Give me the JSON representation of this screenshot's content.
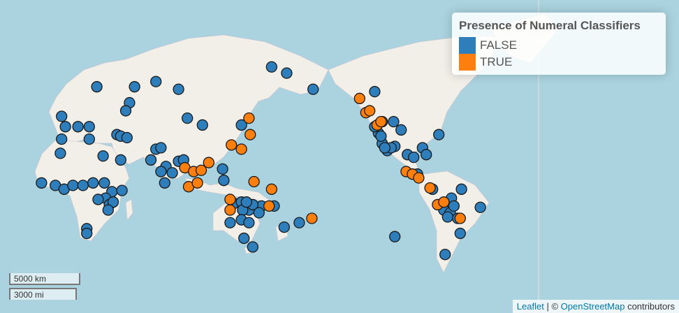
{
  "legend": {
    "title": "Presence of Numeral Classifiers",
    "items": [
      {
        "label": "FALSE",
        "color": "#2e7ebc"
      },
      {
        "label": "TRUE",
        "color": "#ff7f0e"
      }
    ]
  },
  "points": [
    {
      "lon": 166,
      "lat": 67,
      "group": 0
    },
    {
      "lon": 178,
      "lat": 65,
      "group": 0
    },
    {
      "lon": -161,
      "lat": 59,
      "group": 0
    },
    {
      "lon": 27,
      "lat": 60,
      "group": 0
    },
    {
      "lon": 57,
      "lat": 60,
      "group": 0
    },
    {
      "lon": 74,
      "lat": 62,
      "group": 0
    },
    {
      "lon": 92,
      "lat": 59,
      "group": 0
    },
    {
      "lon": 53,
      "lat": 53,
      "group": 0
    },
    {
      "lon": 50,
      "lat": 49,
      "group": 0
    },
    {
      "lon": -1,
      "lat": 46,
      "group": 0
    },
    {
      "lon": 2,
      "lat": 40,
      "group": 0
    },
    {
      "lon": 12,
      "lat": 40,
      "group": 0
    },
    {
      "lon": 21,
      "lat": 40,
      "group": 0
    },
    {
      "lon": -1,
      "lat": 32,
      "group": 0
    },
    {
      "lon": 21,
      "lat": 32,
      "group": 0
    },
    {
      "lon": 43,
      "lat": 35,
      "group": 0
    },
    {
      "lon": 46,
      "lat": 34,
      "group": 0
    },
    {
      "lon": 51,
      "lat": 33,
      "group": 0
    },
    {
      "lon": 99,
      "lat": 45,
      "group": 0
    },
    {
      "lon": 111,
      "lat": 41,
      "group": 0
    },
    {
      "lon": 142,
      "lat": 41,
      "group": 0
    },
    {
      "lon": -2,
      "lat": 22,
      "group": 0
    },
    {
      "lon": 32,
      "lat": 20,
      "group": 0
    },
    {
      "lon": 46,
      "lat": 17,
      "group": 0
    },
    {
      "lon": 70,
      "lat": 17,
      "group": 0
    },
    {
      "lon": 74,
      "lat": 25,
      "group": 0
    },
    {
      "lon": 78,
      "lat": 26,
      "group": 0
    },
    {
      "lon": 92,
      "lat": 16,
      "group": 0
    },
    {
      "lon": 96,
      "lat": 17,
      "group": 0
    },
    {
      "lon": 82,
      "lat": 12,
      "group": 0
    },
    {
      "lon": 78,
      "lat": 8,
      "group": 0
    },
    {
      "lon": 87,
      "lat": 7,
      "group": 0
    },
    {
      "lon": 81,
      "lat": -1,
      "group": 0
    },
    {
      "lon": 127,
      "lat": 10,
      "group": 0
    },
    {
      "lon": 128,
      "lat": 1,
      "group": 0
    },
    {
      "lon": -17,
      "lat": -1,
      "group": 0
    },
    {
      "lon": -6,
      "lat": -3,
      "group": 0
    },
    {
      "lon": 1,
      "lat": -6,
      "group": 0
    },
    {
      "lon": 8,
      "lat": -3,
      "group": 0
    },
    {
      "lon": 16,
      "lat": -3,
      "group": 0
    },
    {
      "lon": 24,
      "lat": -1,
      "group": 0
    },
    {
      "lon": 33,
      "lat": -1,
      "group": 0
    },
    {
      "lon": 39,
      "lat": -8,
      "group": 0
    },
    {
      "lon": 47,
      "lat": -7,
      "group": 0
    },
    {
      "lon": 34,
      "lat": -13,
      "group": 0
    },
    {
      "lon": 37,
      "lat": -18,
      "group": 0
    },
    {
      "lon": 40,
      "lat": -16,
      "group": 0
    },
    {
      "lon": 28,
      "lat": -14,
      "group": 0
    },
    {
      "lon": 36,
      "lat": -22,
      "group": 0
    },
    {
      "lon": 19,
      "lat": -35,
      "group": 0
    },
    {
      "lon": 19,
      "lat": -38,
      "group": 0
    },
    {
      "lon": 136,
      "lat": -17,
      "group": 0
    },
    {
      "lon": 142,
      "lat": -16,
      "group": 0
    },
    {
      "lon": 148,
      "lat": -22,
      "group": 0
    },
    {
      "lon": 158,
      "lat": -19,
      "group": 0
    },
    {
      "lon": 168,
      "lat": -19,
      "group": 0
    },
    {
      "lon": 151,
      "lat": -18,
      "group": 0
    },
    {
      "lon": 156,
      "lat": -24,
      "group": 0
    },
    {
      "lon": 143,
      "lat": -22,
      "group": 0
    },
    {
      "lon": 146,
      "lat": -16,
      "group": 0
    },
    {
      "lon": 133,
      "lat": -31,
      "group": 0
    },
    {
      "lon": 142,
      "lat": -29,
      "group": 0
    },
    {
      "lon": 148,
      "lat": -31,
      "group": 0
    },
    {
      "lon": 144,
      "lat": -41,
      "group": 0
    },
    {
      "lon": 151,
      "lat": -46,
      "group": 0
    },
    {
      "lon": 176,
      "lat": -34,
      "group": 0
    },
    {
      "lon": -172,
      "lat": -31,
      "group": 0
    },
    {
      "lon": -112,
      "lat": 58,
      "group": 0
    },
    {
      "lon": -97,
      "lat": 43,
      "group": 0
    },
    {
      "lon": -91,
      "lat": 38,
      "group": 0
    },
    {
      "lon": -61,
      "lat": 35,
      "group": 0
    },
    {
      "lon": -109,
      "lat": 36,
      "group": 0
    },
    {
      "lon": -106,
      "lat": 29,
      "group": 0
    },
    {
      "lon": -102,
      "lat": 24,
      "group": 0
    },
    {
      "lon": -96,
      "lat": 27,
      "group": 0
    },
    {
      "lon": -107,
      "lat": 34,
      "group": 0
    },
    {
      "lon": -99,
      "lat": 26,
      "group": 0
    },
    {
      "lon": -104,
      "lat": 26,
      "group": 0
    },
    {
      "lon": -86,
      "lat": 21,
      "group": 0
    },
    {
      "lon": -81,
      "lat": 19,
      "group": 0
    },
    {
      "lon": -74,
      "lat": 26,
      "group": 0
    },
    {
      "lon": -71,
      "lat": 21,
      "group": 0
    },
    {
      "lon": -78,
      "lat": 6,
      "group": 0
    },
    {
      "lon": -66,
      "lat": -6,
      "group": 0
    },
    {
      "lon": -43,
      "lat": -6,
      "group": 0
    },
    {
      "lon": -51,
      "lat": -13,
      "group": 0
    },
    {
      "lon": -57,
      "lat": -22,
      "group": 0
    },
    {
      "lon": -52,
      "lat": -24,
      "group": 0
    },
    {
      "lon": -49,
      "lat": -19,
      "group": 0
    },
    {
      "lon": -54,
      "lat": -27,
      "group": 0
    },
    {
      "lon": -46,
      "lat": -28,
      "group": 0
    },
    {
      "lon": -44,
      "lat": -38,
      "group": 0
    },
    {
      "lon": -28,
      "lat": -20,
      "group": 0
    },
    {
      "lon": -96,
      "lat": -40,
      "group": 0
    },
    {
      "lon": -56,
      "lat": -50,
      "group": 0
    },
    {
      "lon": -106,
      "lat": 43,
      "group": 0
    },
    {
      "lon": -112,
      "lat": 40,
      "group": 0
    },
    {
      "lon": 148,
      "lat": 45,
      "group": 1
    },
    {
      "lon": 149,
      "lat": 35,
      "group": 1
    },
    {
      "lon": 134,
      "lat": 28,
      "group": 1
    },
    {
      "lon": 142,
      "lat": 25,
      "group": 1
    },
    {
      "lon": 116,
      "lat": 15,
      "group": 1
    },
    {
      "lon": 97,
      "lat": 11,
      "group": 1
    },
    {
      "lon": 104,
      "lat": 8,
      "group": 1
    },
    {
      "lon": 110,
      "lat": 9,
      "group": 1
    },
    {
      "lon": 100,
      "lat": -4,
      "group": 1
    },
    {
      "lon": 107,
      "lat": -1,
      "group": 1
    },
    {
      "lon": 152,
      "lat": 0,
      "group": 1
    },
    {
      "lon": 166,
      "lat": -6,
      "group": 1
    },
    {
      "lon": 133,
      "lat": -14,
      "group": 1
    },
    {
      "lon": 133,
      "lat": -22,
      "group": 1
    },
    {
      "lon": -162,
      "lat": -28,
      "group": 1
    },
    {
      "lon": -124,
      "lat": 55,
      "group": 1
    },
    {
      "lon": -119,
      "lat": 48,
      "group": 1
    },
    {
      "lon": -116,
      "lat": 49,
      "group": 1
    },
    {
      "lon": -110,
      "lat": 41,
      "group": 1
    },
    {
      "lon": -107,
      "lat": 43,
      "group": 1
    },
    {
      "lon": -87,
      "lat": 8,
      "group": 1
    },
    {
      "lon": -82,
      "lat": 6,
      "group": 1
    },
    {
      "lon": -77,
      "lat": 3,
      "group": 1
    },
    {
      "lon": -68,
      "lat": -5,
      "group": 1
    },
    {
      "lon": -62,
      "lat": -18,
      "group": 1
    },
    {
      "lon": -57,
      "lat": -16,
      "group": 1
    },
    {
      "lon": -44,
      "lat": -28,
      "group": 1
    },
    {
      "lon": 164,
      "lat": -19,
      "group": 1
    }
  ],
  "scale": {
    "metric": "5000 km",
    "imperial": "3000 mi"
  },
  "attribution": {
    "leaflet": "Leaflet",
    "separator": "| ©",
    "osm": "OpenStreetMap",
    "rest": "contributors"
  }
}
